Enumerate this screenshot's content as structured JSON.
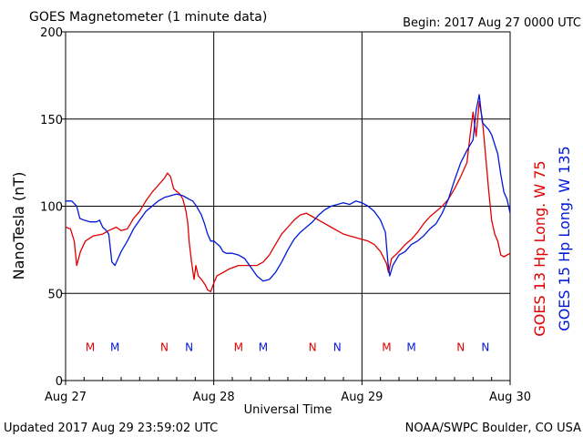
{
  "header": {
    "title": "GOES Magnetometer (1 minute data)",
    "begin": "Begin:  2017 Aug 27 0000 UTC"
  },
  "footer": {
    "updated": "Updated 2017 Aug 29 23:59:02 UTC",
    "source": "NOAA/SWPC Boulder, CO USA"
  },
  "chart_data": {
    "type": "line",
    "title": "GOES Magnetometer (1 minute data)",
    "xlabel": "Universal Time",
    "ylabel": "NanoTesla (nT)",
    "xlim": [
      0,
      72
    ],
    "ylim": [
      0,
      200
    ],
    "x_unit": "hours since 2017 Aug 27 0000 UTC",
    "x_ticks": [
      {
        "value": 0,
        "label": "Aug 27"
      },
      {
        "value": 24,
        "label": "Aug 28"
      },
      {
        "value": 48,
        "label": "Aug 29"
      },
      {
        "value": 72,
        "label": "Aug 30"
      }
    ],
    "y_ticks": [
      0,
      50,
      100,
      150,
      200
    ],
    "grid": true,
    "series": [
      {
        "name": "GOES 13 Hp",
        "legend_label": "GOES 13 Hp  Long. W 75",
        "color": "#e00000",
        "points": [
          [
            0,
            88
          ],
          [
            0.8,
            87
          ],
          [
            1.4,
            80
          ],
          [
            1.8,
            66
          ],
          [
            2.4,
            74
          ],
          [
            3.2,
            80
          ],
          [
            4.5,
            83
          ],
          [
            6,
            84
          ],
          [
            7,
            86
          ],
          [
            8.2,
            88
          ],
          [
            9,
            86
          ],
          [
            10,
            87
          ],
          [
            11,
            93
          ],
          [
            12,
            97
          ],
          [
            13,
            103
          ],
          [
            14,
            108
          ],
          [
            15,
            112
          ],
          [
            16,
            116
          ],
          [
            16.5,
            119
          ],
          [
            17,
            117
          ],
          [
            17.5,
            110
          ],
          [
            18.5,
            107
          ],
          [
            19,
            104
          ],
          [
            19.5,
            97
          ],
          [
            19.8,
            90
          ],
          [
            20,
            80
          ],
          [
            20.4,
            68
          ],
          [
            20.8,
            58
          ],
          [
            21.1,
            66
          ],
          [
            21.5,
            60
          ],
          [
            22,
            58
          ],
          [
            22.6,
            55
          ],
          [
            23,
            52
          ],
          [
            23.5,
            51
          ],
          [
            24,
            56
          ],
          [
            24.5,
            60
          ],
          [
            25.5,
            62
          ],
          [
            26.5,
            64
          ],
          [
            28,
            66
          ],
          [
            29.5,
            66
          ],
          [
            31,
            66
          ],
          [
            32,
            68
          ],
          [
            33,
            72
          ],
          [
            34,
            78
          ],
          [
            35,
            84
          ],
          [
            36,
            88
          ],
          [
            37,
            92
          ],
          [
            38,
            95
          ],
          [
            39,
            96
          ],
          [
            40,
            94
          ],
          [
            41,
            92
          ],
          [
            42,
            90
          ],
          [
            43,
            88
          ],
          [
            44,
            86
          ],
          [
            45,
            84
          ],
          [
            46,
            83
          ],
          [
            47,
            82
          ],
          [
            48,
            81
          ],
          [
            49,
            80
          ],
          [
            50,
            78
          ],
          [
            51,
            74
          ],
          [
            52,
            67
          ],
          [
            52.3,
            62
          ],
          [
            52.8,
            70
          ],
          [
            54,
            74
          ],
          [
            55,
            78
          ],
          [
            56,
            81
          ],
          [
            57,
            85
          ],
          [
            58,
            90
          ],
          [
            59,
            94
          ],
          [
            60,
            97
          ],
          [
            61,
            100
          ],
          [
            62,
            104
          ],
          [
            63,
            110
          ],
          [
            64,
            117
          ],
          [
            65,
            125
          ],
          [
            65.5,
            140
          ],
          [
            66,
            154
          ],
          [
            66.5,
            140
          ],
          [
            67,
            160
          ],
          [
            67.5,
            150
          ],
          [
            68,
            130
          ],
          [
            68.5,
            110
          ],
          [
            69,
            92
          ],
          [
            69.5,
            84
          ],
          [
            70,
            80
          ],
          [
            70.5,
            72
          ],
          [
            71,
            71
          ],
          [
            72,
            73
          ]
        ]
      },
      {
        "name": "GOES 15 Hp",
        "legend_label": "GOES 15 Hp  Long. W 135",
        "color": "#0018d8",
        "points": [
          [
            0,
            103
          ],
          [
            1,
            103
          ],
          [
            1.8,
            100
          ],
          [
            2.3,
            93
          ],
          [
            3,
            92
          ],
          [
            4,
            91
          ],
          [
            5,
            91
          ],
          [
            5.5,
            92
          ],
          [
            6,
            88
          ],
          [
            6.6,
            86
          ],
          [
            7,
            84
          ],
          [
            7.5,
            68
          ],
          [
            8,
            66
          ],
          [
            8.5,
            70
          ],
          [
            9,
            74
          ],
          [
            10,
            80
          ],
          [
            11,
            87
          ],
          [
            12,
            92
          ],
          [
            13,
            97
          ],
          [
            14,
            100
          ],
          [
            15,
            103
          ],
          [
            16,
            105
          ],
          [
            17,
            106
          ],
          [
            18,
            107
          ],
          [
            19,
            106
          ],
          [
            20,
            104
          ],
          [
            20.6,
            103
          ],
          [
            21.2,
            100
          ],
          [
            22,
            95
          ],
          [
            22.5,
            90
          ],
          [
            23,
            84
          ],
          [
            23.5,
            80
          ],
          [
            24,
            80
          ],
          [
            25,
            77
          ],
          [
            25.5,
            74
          ],
          [
            26,
            73
          ],
          [
            27,
            73
          ],
          [
            28,
            72
          ],
          [
            29,
            70
          ],
          [
            30,
            65
          ],
          [
            31,
            60
          ],
          [
            32,
            57
          ],
          [
            33,
            58
          ],
          [
            34,
            62
          ],
          [
            35,
            68
          ],
          [
            36,
            75
          ],
          [
            37,
            81
          ],
          [
            38,
            85
          ],
          [
            39,
            88
          ],
          [
            40,
            91
          ],
          [
            41,
            95
          ],
          [
            42,
            98
          ],
          [
            43,
            100
          ],
          [
            44,
            101
          ],
          [
            45,
            102
          ],
          [
            46,
            101
          ],
          [
            47,
            103
          ],
          [
            48,
            102
          ],
          [
            49,
            100
          ],
          [
            50,
            97
          ],
          [
            51,
            92
          ],
          [
            51.8,
            85
          ],
          [
            52.2,
            68
          ],
          [
            52.5,
            60
          ],
          [
            53,
            66
          ],
          [
            54,
            72
          ],
          [
            55,
            74
          ],
          [
            56,
            78
          ],
          [
            57,
            80
          ],
          [
            58,
            83
          ],
          [
            59,
            87
          ],
          [
            60,
            90
          ],
          [
            61,
            96
          ],
          [
            62,
            104
          ],
          [
            63,
            115
          ],
          [
            64,
            125
          ],
          [
            65,
            132
          ],
          [
            66,
            138
          ],
          [
            66.5,
            155
          ],
          [
            67,
            164
          ],
          [
            67.5,
            148
          ],
          [
            68,
            146
          ],
          [
            68.5,
            144
          ],
          [
            69,
            141
          ],
          [
            70,
            130
          ],
          [
            70.5,
            118
          ],
          [
            71,
            108
          ],
          [
            71.5,
            104
          ],
          [
            72,
            96
          ]
        ]
      }
    ],
    "markers": [
      {
        "label": "M",
        "x": 4,
        "color": "#e00000"
      },
      {
        "label": "M",
        "x": 8,
        "color": "#0018d8"
      },
      {
        "label": "N",
        "x": 16,
        "color": "#e00000"
      },
      {
        "label": "N",
        "x": 20,
        "color": "#0018d8"
      },
      {
        "label": "M",
        "x": 28,
        "color": "#e00000"
      },
      {
        "label": "M",
        "x": 32,
        "color": "#0018d8"
      },
      {
        "label": "N",
        "x": 40,
        "color": "#e00000"
      },
      {
        "label": "N",
        "x": 44,
        "color": "#0018d8"
      },
      {
        "label": "M",
        "x": 52,
        "color": "#e00000"
      },
      {
        "label": "M",
        "x": 56,
        "color": "#0018d8"
      },
      {
        "label": "N",
        "x": 64,
        "color": "#e00000"
      },
      {
        "label": "N",
        "x": 68,
        "color": "#0018d8"
      }
    ],
    "marker_value": 17
  }
}
